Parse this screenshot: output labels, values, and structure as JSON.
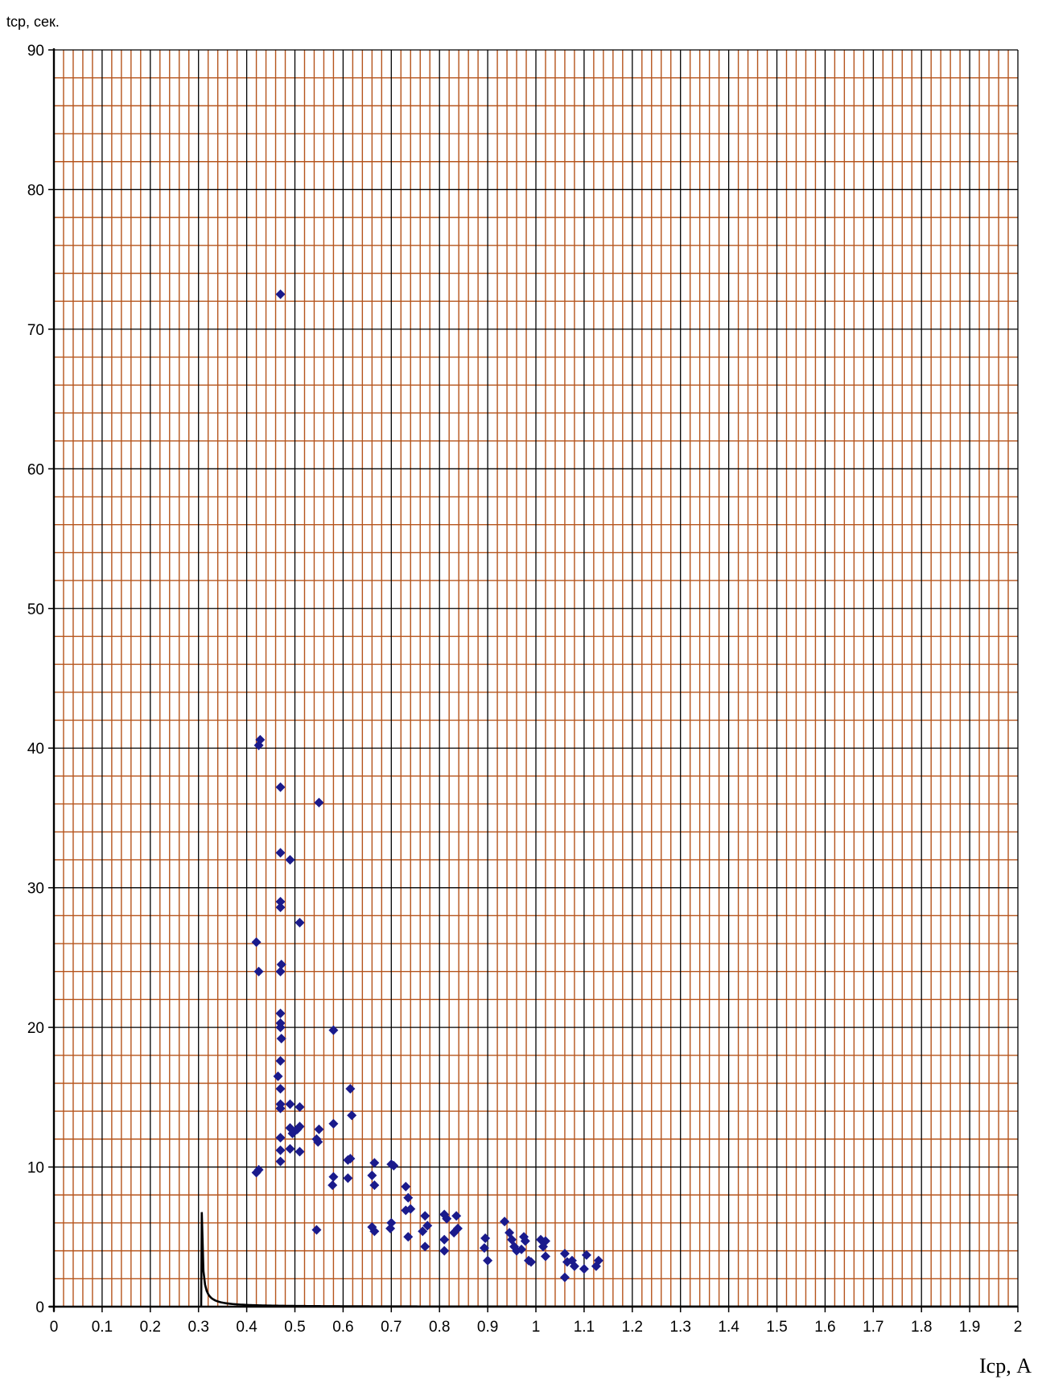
{
  "chart_data": {
    "type": "scatter",
    "title": "",
    "ylabel": "tср, сек.",
    "xlabel": "Iср, А",
    "xlim": [
      0,
      2
    ],
    "ylim": [
      0,
      90
    ],
    "x_ticks": [
      "0",
      "0.1",
      "0.2",
      "0.3",
      "0.4",
      "0.5",
      "0.6",
      "0.7",
      "0.8",
      "0.9",
      "1",
      "1.1",
      "1.2",
      "1.3",
      "1.4",
      "1.5",
      "1.6",
      "1.7",
      "1.8",
      "1.9",
      "2"
    ],
    "y_ticks": [
      "0",
      "10",
      "20",
      "30",
      "40",
      "50",
      "60",
      "70",
      "80",
      "90"
    ],
    "grid": {
      "major": true,
      "minor": true,
      "major_color": "#000000",
      "minor_color": "#b5541c"
    },
    "series": [
      {
        "kind": "scatter",
        "marker": "diamond",
        "color": "#1a1a8c",
        "points": [
          [
            0.425,
            40.2
          ],
          [
            0.428,
            40.6
          ],
          [
            0.42,
            26.1
          ],
          [
            0.425,
            24.0
          ],
          [
            0.425,
            9.8
          ],
          [
            0.42,
            9.6
          ],
          [
            0.47,
            72.5
          ],
          [
            0.47,
            37.2
          ],
          [
            0.47,
            32.5
          ],
          [
            0.47,
            29.0
          ],
          [
            0.47,
            28.6
          ],
          [
            0.472,
            24.5
          ],
          [
            0.47,
            24.0
          ],
          [
            0.47,
            21.0
          ],
          [
            0.47,
            20.3
          ],
          [
            0.47,
            20.0
          ],
          [
            0.472,
            19.2
          ],
          [
            0.47,
            17.6
          ],
          [
            0.465,
            16.5
          ],
          [
            0.47,
            15.6
          ],
          [
            0.47,
            14.5
          ],
          [
            0.47,
            14.2
          ],
          [
            0.47,
            12.1
          ],
          [
            0.47,
            11.2
          ],
          [
            0.47,
            10.4
          ],
          [
            0.49,
            32.0
          ],
          [
            0.49,
            14.5
          ],
          [
            0.49,
            12.8
          ],
          [
            0.495,
            12.4
          ],
          [
            0.49,
            11.3
          ],
          [
            0.51,
            27.5
          ],
          [
            0.51,
            14.3
          ],
          [
            0.51,
            12.9
          ],
          [
            0.505,
            12.7
          ],
          [
            0.51,
            11.1
          ],
          [
            0.55,
            36.1
          ],
          [
            0.55,
            12.7
          ],
          [
            0.545,
            12.0
          ],
          [
            0.548,
            11.8
          ],
          [
            0.545,
            5.5
          ],
          [
            0.58,
            19.8
          ],
          [
            0.58,
            13.1
          ],
          [
            0.58,
            9.3
          ],
          [
            0.578,
            8.7
          ],
          [
            0.615,
            15.6
          ],
          [
            0.618,
            13.7
          ],
          [
            0.615,
            10.6
          ],
          [
            0.61,
            10.5
          ],
          [
            0.61,
            9.2
          ],
          [
            0.665,
            10.3
          ],
          [
            0.66,
            9.4
          ],
          [
            0.665,
            8.7
          ],
          [
            0.66,
            5.7
          ],
          [
            0.665,
            5.4
          ],
          [
            0.7,
            10.2
          ],
          [
            0.705,
            10.1
          ],
          [
            0.7,
            6.0
          ],
          [
            0.698,
            5.6
          ],
          [
            0.73,
            8.6
          ],
          [
            0.735,
            7.8
          ],
          [
            0.74,
            7.0
          ],
          [
            0.73,
            6.9
          ],
          [
            0.735,
            5.0
          ],
          [
            0.77,
            6.5
          ],
          [
            0.775,
            5.8
          ],
          [
            0.765,
            5.4
          ],
          [
            0.77,
            4.3
          ],
          [
            0.81,
            6.6
          ],
          [
            0.815,
            6.3
          ],
          [
            0.81,
            4.8
          ],
          [
            0.81,
            4.0
          ],
          [
            0.835,
            6.5
          ],
          [
            0.838,
            5.6
          ],
          [
            0.83,
            5.3
          ],
          [
            0.895,
            4.9
          ],
          [
            0.893,
            4.2
          ],
          [
            0.9,
            3.3
          ],
          [
            0.935,
            6.1
          ],
          [
            0.945,
            5.3
          ],
          [
            0.95,
            4.8
          ],
          [
            0.955,
            4.3
          ],
          [
            0.96,
            4.0
          ],
          [
            0.975,
            5.0
          ],
          [
            0.978,
            4.7
          ],
          [
            0.97,
            4.1
          ],
          [
            0.985,
            3.3
          ],
          [
            0.99,
            3.2
          ],
          [
            1.01,
            4.8
          ],
          [
            1.02,
            4.7
          ],
          [
            1.015,
            4.3
          ],
          [
            1.02,
            3.6
          ],
          [
            1.06,
            3.8
          ],
          [
            1.065,
            3.2
          ],
          [
            1.06,
            2.1
          ],
          [
            1.075,
            3.3
          ],
          [
            1.08,
            2.9
          ],
          [
            1.105,
            3.7
          ],
          [
            1.1,
            2.7
          ],
          [
            1.13,
            3.3
          ],
          [
            1.125,
            2.9
          ]
        ]
      },
      {
        "kind": "line",
        "color": "#000000",
        "curve": {
          "formula": "t = 0.007 / (I^2.3 - 0.065)",
          "x_from": 0.3,
          "x_to": 2.0
        }
      }
    ]
  }
}
